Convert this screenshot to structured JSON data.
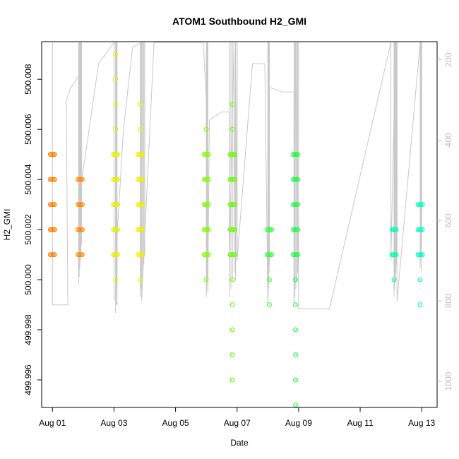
{
  "chart_data": {
    "type": "scatter",
    "title": "ATOM1 Southbound H2_GMI",
    "xlabel": "Date",
    "ylabel": "H2_GMI",
    "x_ticks": [
      "Aug 01",
      "Aug 03",
      "Aug 05",
      "Aug 07",
      "Aug 09",
      "Aug 11",
      "Aug 13"
    ],
    "x_tick_days": [
      1,
      3,
      5,
      7,
      9,
      11,
      13
    ],
    "xlim_days": [
      0.65,
      13.5
    ],
    "y_ticks": [
      "499.996",
      "499.998",
      "500.000",
      "500.002",
      "500.004",
      "500.006",
      "500.008"
    ],
    "y_tick_values": [
      499.996,
      499.998,
      500.0,
      500.002,
      500.004,
      500.006,
      500.008
    ],
    "ylim": [
      499.9949,
      500.0095
    ],
    "y2_ticks": [
      "200",
      "400",
      "600",
      "800",
      "1000"
    ],
    "y2_tick_values": [
      200,
      400,
      600,
      800,
      1000
    ],
    "y2lim": [
      1065,
      155
    ],
    "y2_color": "#bdbdbd",
    "line_color": "#c8c8c8",
    "grid": false,
    "series": [
      {
        "day": 1.0,
        "color": "#ff7f00",
        "points": [
          500.005,
          500.004,
          500.003,
          500.002,
          500.001
        ]
      },
      {
        "day": 1.9,
        "color": "#ff8a00",
        "points": [
          500.004,
          500.003,
          500.002,
          500.001
        ]
      },
      {
        "day": 3.05,
        "color": "#e6f000",
        "points": [
          500.009,
          500.008,
          500.007,
          500.006,
          500.005,
          500.004,
          500.003,
          500.002,
          500.001,
          500.0
        ]
      },
      {
        "day": 3.85,
        "color": "#f0f000",
        "points": [
          500.007,
          500.006,
          500.005,
          500.004,
          500.003,
          500.002,
          500.001,
          500.0
        ]
      },
      {
        "day": 6.0,
        "color": "#80ff00",
        "points": [
          500.006,
          500.005,
          500.004,
          500.003,
          500.002,
          500.001,
          500.0
        ]
      },
      {
        "day": 6.85,
        "color": "#66ff00",
        "points": [
          500.007,
          500.006,
          500.005,
          500.004,
          500.003,
          500.002,
          500.001,
          500.0,
          499.999,
          499.998,
          499.997,
          499.996
        ]
      },
      {
        "day": 8.05,
        "color": "#33ff33",
        "points": [
          500.002,
          500.001,
          500.0,
          499.999
        ]
      },
      {
        "day": 8.9,
        "color": "#1aff40",
        "points": [
          500.005,
          500.004,
          500.003,
          500.002,
          500.001,
          500.0,
          499.999,
          499.998,
          499.997,
          499.996,
          499.995
        ]
      },
      {
        "day": 12.1,
        "color": "#00ffb0",
        "points": [
          500.002,
          500.001,
          500.0
        ]
      },
      {
        "day": 12.95,
        "color": "#00ffc0",
        "points": [
          500.003,
          500.002,
          500.001,
          500.0,
          499.999
        ]
      }
    ]
  }
}
